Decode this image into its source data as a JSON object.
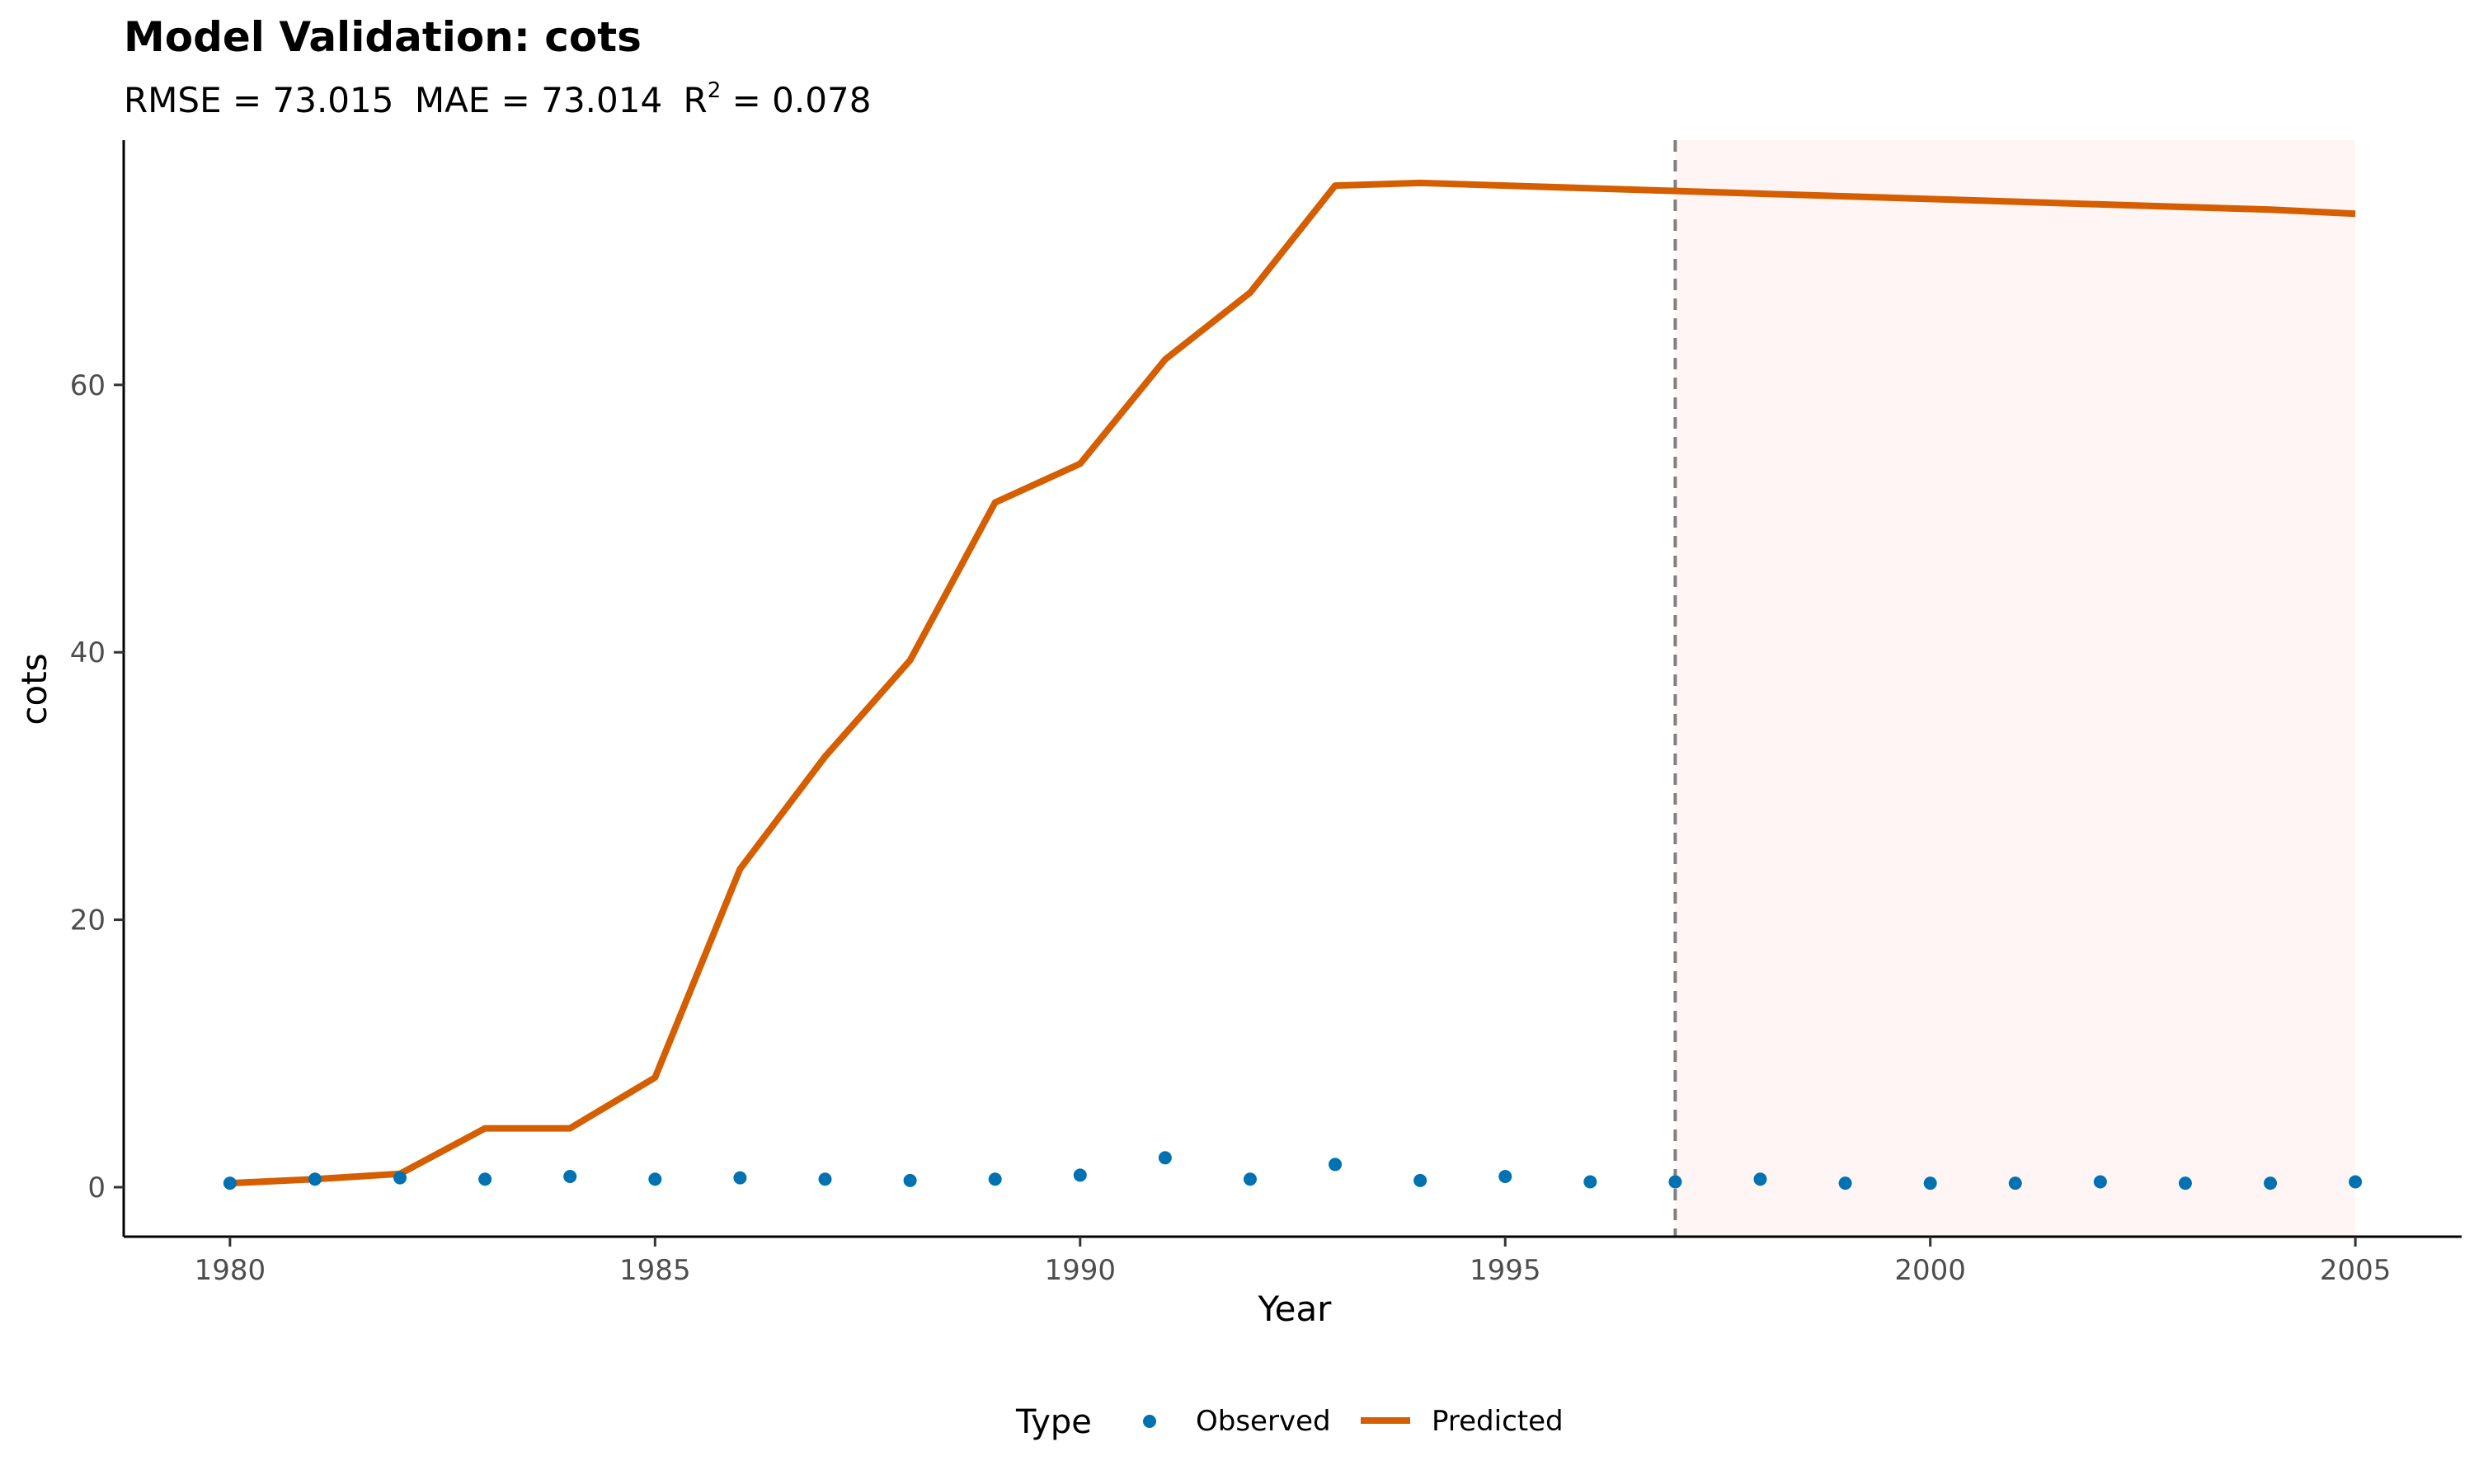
{
  "colors": {
    "observed": "#0072b2",
    "predicted": "#d55e00",
    "forecast_shade": "#fff5f5",
    "cutoff_line": "#808080",
    "axis": "#000000"
  },
  "chart_data": {
    "type": "line",
    "title": "Model Validation: cots",
    "subtitle": {
      "rmse_label": "RMSE = 73.015",
      "mae_label": "MAE = 73.014",
      "r2_prefix": "R",
      "r2_superscript": "2",
      "r2_value": " = 0.078"
    },
    "xlabel": "Year",
    "ylabel": "cots",
    "xlim": [
      1978.75,
      2006.25
    ],
    "ylim": [
      -3.7,
      78.3
    ],
    "x_ticks": [
      1980,
      1985,
      1990,
      1995,
      2000,
      2005
    ],
    "x_tick_labels": [
      "1980",
      "1985",
      "1990",
      "1995",
      "2000",
      "2005"
    ],
    "y_ticks": [
      0,
      20,
      40,
      60
    ],
    "y_tick_labels": [
      "0",
      "20",
      "40",
      "60"
    ],
    "grid": false,
    "forecast_region": {
      "start": 1997,
      "end": 2005
    },
    "cutoff_year": 1997,
    "legend": {
      "title": "Type",
      "position": "bottom",
      "entries": [
        {
          "label": "Observed",
          "kind": "point"
        },
        {
          "label": "Predicted",
          "kind": "line"
        }
      ]
    },
    "series": [
      {
        "name": "Observed",
        "kind": "point",
        "x": [
          1980,
          1981,
          1982,
          1983,
          1984,
          1985,
          1986,
          1987,
          1988,
          1989,
          1990,
          1991,
          1992,
          1993,
          1994,
          1995,
          1996,
          1997,
          1998,
          1999,
          2000,
          2001,
          2002,
          2003,
          2004,
          2005
        ],
        "y": [
          0.3,
          0.6,
          0.7,
          0.6,
          0.8,
          0.6,
          0.7,
          0.6,
          0.5,
          0.6,
          0.9,
          2.2,
          0.6,
          1.7,
          0.5,
          0.8,
          0.4,
          0.4,
          0.6,
          0.3,
          0.3,
          0.3,
          0.4,
          0.3,
          0.3,
          0.4
        ]
      },
      {
        "name": "Predicted",
        "kind": "line",
        "x": [
          1980,
          1981,
          1982,
          1983,
          1984,
          1985,
          1986,
          1987,
          1988,
          1989,
          1990,
          1991,
          1992,
          1993,
          1994,
          1995,
          1996,
          1997,
          1998,
          1999,
          2000,
          2001,
          2002,
          2003,
          2004,
          2005
        ],
        "y": [
          0.3,
          0.6,
          1.0,
          4.4,
          4.4,
          8.2,
          23.8,
          32.2,
          39.4,
          51.2,
          54.1,
          61.9,
          66.9,
          74.9,
          75.1,
          74.9,
          74.7,
          74.5,
          74.3,
          74.1,
          73.9,
          73.7,
          73.5,
          73.3,
          73.1,
          72.8
        ]
      }
    ]
  }
}
